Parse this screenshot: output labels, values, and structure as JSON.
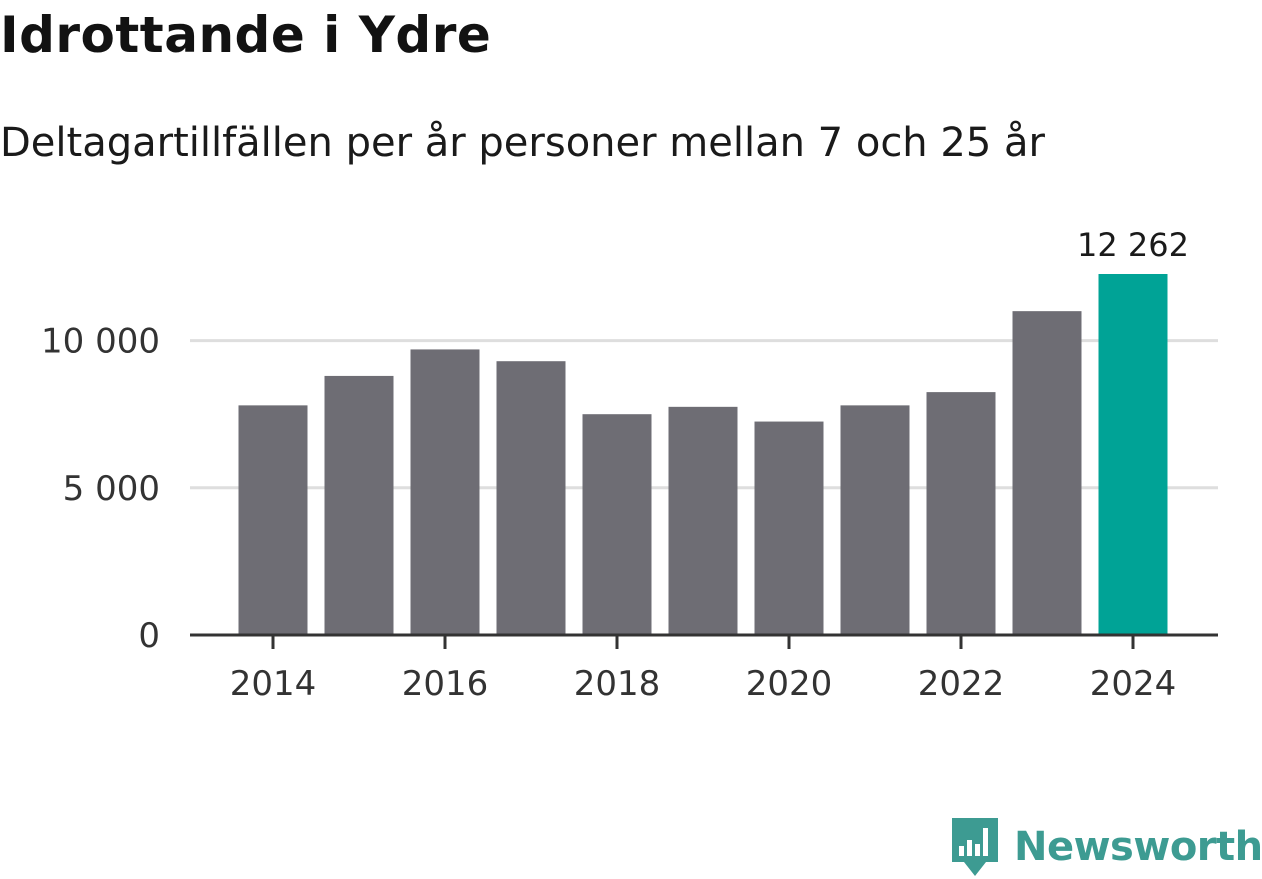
{
  "chart_data": {
    "type": "bar",
    "title": "Idrottande i Ydre",
    "subtitle": "Deltagartillfällen per år personer mellan 7 och 25 år",
    "categories": [
      "2014",
      "2015",
      "2016",
      "2017",
      "2018",
      "2019",
      "2020",
      "2021",
      "2022",
      "2023",
      "2024"
    ],
    "values": [
      7800,
      8800,
      9700,
      9300,
      7500,
      7750,
      7250,
      7800,
      8250,
      11000,
      12262
    ],
    "x_tick_labels": [
      "2014",
      "2016",
      "2018",
      "2020",
      "2022",
      "2024"
    ],
    "y_ticks": [
      0,
      5000,
      10000
    ],
    "y_tick_labels": [
      "0",
      "5 000",
      "10 000"
    ],
    "ylim": [
      0,
      12262
    ],
    "xlabel": "",
    "ylabel": "",
    "grid": true,
    "highlight_label": "12 262",
    "colors": {
      "bar": "#6e6d74",
      "highlight": "#00a396",
      "grid": "#dedede",
      "axis": "#333333",
      "text": "#333333"
    }
  },
  "branding": {
    "name": "Newsworthy",
    "icon": "bar-chart-speech-bubble-icon",
    "color": "#3d9b92"
  }
}
